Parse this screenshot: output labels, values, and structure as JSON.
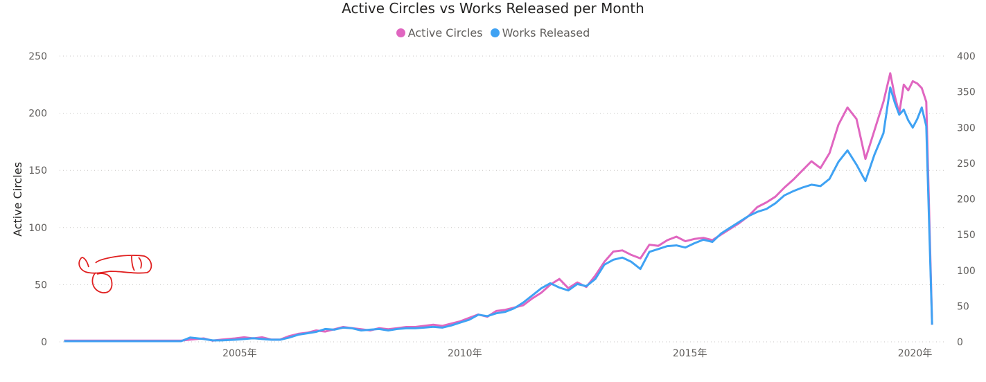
{
  "chart_data": {
    "type": "line",
    "title": "Active Circles vs Works Released per Month",
    "ylabel": "Active Circles",
    "y2label": "",
    "ylim": [
      0,
      250
    ],
    "y2lim": [
      0,
      400
    ],
    "yticks": [
      "0",
      "50",
      "100",
      "150",
      "200",
      "250"
    ],
    "y2ticks": [
      "0",
      "50",
      "100",
      "150",
      "200",
      "250",
      "300",
      "350",
      "400"
    ],
    "xlim": [
      2001.0,
      2020.7
    ],
    "xticks": [
      {
        "label": "2005年",
        "x": 2005.0
      },
      {
        "label": "2010年",
        "x": 2010.0
      },
      {
        "label": "2015年",
        "x": 2015.0
      },
      {
        "label": "2020年",
        "x": 2020.0
      }
    ],
    "grid": true,
    "legend_position": "top-center",
    "series": [
      {
        "name": "Active Circles",
        "color": "#E066C0",
        "axis": "left",
        "x": [
          2001.1,
          2002.0,
          2003.0,
          2003.7,
          2003.9,
          2004.2,
          2004.4,
          2004.6,
          2004.9,
          2005.1,
          2005.3,
          2005.5,
          2005.7,
          2005.9,
          2006.1,
          2006.3,
          2006.5,
          2006.7,
          2006.9,
          2007.1,
          2007.3,
          2007.5,
          2007.7,
          2007.9,
          2008.1,
          2008.3,
          2008.5,
          2008.7,
          2008.9,
          2009.1,
          2009.3,
          2009.5,
          2009.7,
          2009.9,
          2010.1,
          2010.3,
          2010.5,
          2010.7,
          2010.9,
          2011.1,
          2011.3,
          2011.5,
          2011.7,
          2011.9,
          2012.1,
          2012.3,
          2012.5,
          2012.7,
          2012.9,
          2013.1,
          2013.3,
          2013.5,
          2013.7,
          2013.9,
          2014.1,
          2014.3,
          2014.5,
          2014.7,
          2014.9,
          2015.1,
          2015.3,
          2015.5,
          2015.7,
          2015.9,
          2016.1,
          2016.3,
          2016.5,
          2016.7,
          2016.9,
          2017.1,
          2017.3,
          2017.5,
          2017.7,
          2017.9,
          2018.1,
          2018.3,
          2018.5,
          2018.7,
          2018.9,
          2019.1,
          2019.3,
          2019.45,
          2019.55,
          2019.65,
          2019.75,
          2019.85,
          2019.95,
          2020.05,
          2020.15,
          2020.25,
          2020.38
        ],
        "values": [
          1,
          1,
          1,
          1,
          2,
          3,
          1,
          2,
          3,
          4,
          3,
          4,
          2,
          2,
          5,
          7,
          8,
          10,
          9,
          11,
          13,
          12,
          11,
          10,
          12,
          11,
          12,
          13,
          13,
          14,
          15,
          14,
          16,
          18,
          21,
          24,
          22,
          27,
          28,
          30,
          32,
          38,
          43,
          50,
          55,
          47,
          52,
          48,
          58,
          70,
          79,
          80,
          76,
          73,
          85,
          84,
          89,
          92,
          88,
          90,
          91,
          89,
          94,
          99,
          104,
          110,
          118,
          122,
          127,
          135,
          142,
          150,
          158,
          152,
          165,
          190,
          205,
          195,
          160,
          185,
          210,
          235,
          215,
          200,
          225,
          220,
          228,
          226,
          222,
          210,
          15
        ]
      },
      {
        "name": "Works Released",
        "color": "#3FA2F3",
        "axis": "right",
        "x": [
          2001.1,
          2002.0,
          2003.0,
          2003.7,
          2003.9,
          2004.2,
          2004.4,
          2004.6,
          2004.9,
          2005.1,
          2005.3,
          2005.5,
          2005.7,
          2005.9,
          2006.1,
          2006.3,
          2006.5,
          2006.7,
          2006.9,
          2007.1,
          2007.3,
          2007.5,
          2007.7,
          2007.9,
          2008.1,
          2008.3,
          2008.5,
          2008.7,
          2008.9,
          2009.1,
          2009.3,
          2009.5,
          2009.7,
          2009.9,
          2010.1,
          2010.3,
          2010.5,
          2010.7,
          2010.9,
          2011.1,
          2011.3,
          2011.5,
          2011.7,
          2011.9,
          2012.1,
          2012.3,
          2012.5,
          2012.7,
          2012.9,
          2013.1,
          2013.3,
          2013.5,
          2013.7,
          2013.9,
          2014.1,
          2014.3,
          2014.5,
          2014.7,
          2014.9,
          2015.1,
          2015.3,
          2015.5,
          2015.7,
          2015.9,
          2016.1,
          2016.3,
          2016.5,
          2016.7,
          2016.9,
          2017.1,
          2017.3,
          2017.5,
          2017.7,
          2017.9,
          2018.1,
          2018.3,
          2018.5,
          2018.7,
          2018.9,
          2019.1,
          2019.3,
          2019.45,
          2019.55,
          2019.65,
          2019.75,
          2019.85,
          2019.95,
          2020.05,
          2020.15,
          2020.25,
          2020.38
        ],
        "values": [
          1,
          1,
          1,
          1,
          6,
          4,
          2,
          2,
          3,
          4,
          5,
          4,
          3,
          3,
          6,
          10,
          12,
          14,
          18,
          17,
          20,
          19,
          16,
          17,
          18,
          16,
          18,
          19,
          19,
          20,
          21,
          20,
          23,
          27,
          31,
          38,
          36,
          40,
          42,
          47,
          55,
          65,
          75,
          82,
          76,
          72,
          81,
          78,
          88,
          108,
          115,
          118,
          112,
          102,
          126,
          130,
          134,
          135,
          132,
          138,
          143,
          140,
          152,
          160,
          168,
          176,
          182,
          186,
          194,
          205,
          211,
          216,
          220,
          218,
          228,
          252,
          268,
          248,
          225,
          262,
          292,
          356,
          335,
          318,
          325,
          310,
          300,
          312,
          328,
          302,
          24
        ]
      }
    ]
  },
  "annotation": {
    "scribble_color": "#E02020"
  }
}
